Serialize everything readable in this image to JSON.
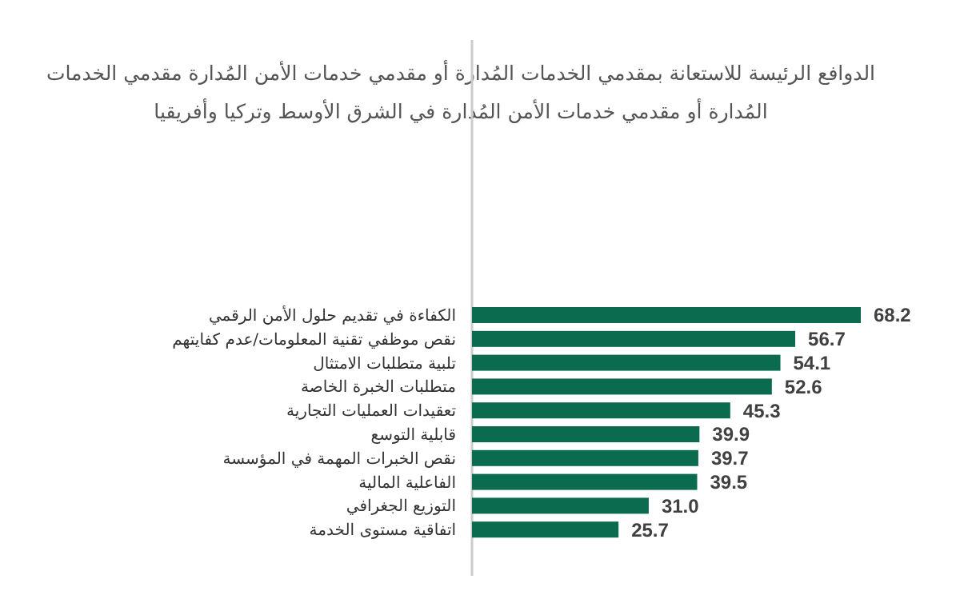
{
  "chart_data": {
    "type": "bar",
    "orientation": "horizontal",
    "title": "الدوافع الرئيسة للاستعانة بمقدمي الخدمات المُدارة أو مقدمي خدمات الأمن المُدارة مقدمي الخدمات\nالمُدارة أو مقدمي خدمات الأمن المُدارة في الشرق الأوسط وتركيا وأفريقيا",
    "categories": [
      "الكفاءة في تقديم حلول الأمن الرقمي",
      "نقص موظفي تقنية المعلومات/عدم كفايتهم",
      "تلبية متطلبات الامتثال",
      "متطلبات الخبرة الخاصة",
      "تعقيدات العمليات التجارية",
      "قابلية التوسع",
      "نقص الخبرات المهمة في المؤسسة",
      "الفاعلية المالية",
      "التوزيع الجغرافي",
      "اتفاقية مستوى الخدمة"
    ],
    "values": [
      68.2,
      56.7,
      54.1,
      52.6,
      45.3,
      39.9,
      39.7,
      39.5,
      31.0,
      25.7
    ],
    "value_labels": [
      "68.2",
      "56.7",
      "54.1",
      "52.6",
      "45.3",
      "39.9",
      "39.7",
      "39.5",
      "31.0",
      "25.7"
    ],
    "color": "#0b6b4f"
  }
}
